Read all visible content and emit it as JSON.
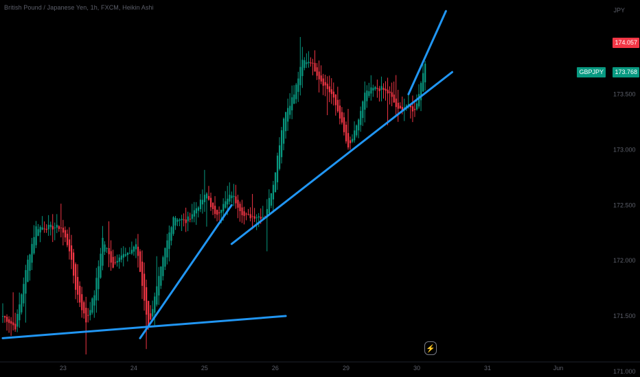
{
  "header": {
    "title": "British Pound / Japanese Yen, 1h, FXCM, Heikin Ashi",
    "currency": "JPY"
  },
  "price_badges": {
    "high_price": "174.057",
    "symbol": "GBPJPY",
    "last_price": "173.768"
  },
  "colors": {
    "up": "#089981",
    "down": "#f23645",
    "trendline": "#2196f3",
    "background": "#000000",
    "axis_text": "#5d606b"
  },
  "indicators": {
    "bolt_icon": "lightning-icon"
  },
  "chart_data": {
    "type": "candlestick",
    "style": "Heikin Ashi",
    "symbol": "GBPJPY",
    "interval": "1h",
    "source": "FXCM",
    "ylim": [
      170.95,
      174.35
    ],
    "x_ticks": [
      "23",
      "24",
      "25",
      "26",
      "29",
      "30",
      "31",
      "Jun"
    ],
    "y_ticks": [
      "171.000",
      "171.500",
      "172.000",
      "172.500",
      "173.000",
      "173.500"
    ],
    "anchors": [
      {
        "i": 0,
        "p": 171.5
      },
      {
        "i": 6,
        "p": 171.4
      },
      {
        "i": 12,
        "p": 172.0
      },
      {
        "i": 16,
        "p": 172.3
      },
      {
        "i": 22,
        "p": 172.3
      },
      {
        "i": 28,
        "p": 172.3
      },
      {
        "i": 32,
        "p": 172.1
      },
      {
        "i": 35,
        "p": 171.75
      },
      {
        "i": 40,
        "p": 171.45
      },
      {
        "i": 44,
        "p": 171.7
      },
      {
        "i": 48,
        "p": 172.2
      },
      {
        "i": 53,
        "p": 171.95
      },
      {
        "i": 56,
        "p": 172.05
      },
      {
        "i": 60,
        "p": 172.05
      },
      {
        "i": 64,
        "p": 172.15
      },
      {
        "i": 70,
        "p": 171.4
      },
      {
        "i": 74,
        "p": 171.75
      },
      {
        "i": 78,
        "p": 172.1
      },
      {
        "i": 82,
        "p": 172.4
      },
      {
        "i": 88,
        "p": 172.35
      },
      {
        "i": 94,
        "p": 172.5
      },
      {
        "i": 98,
        "p": 172.6
      },
      {
        "i": 102,
        "p": 172.4
      },
      {
        "i": 106,
        "p": 172.5
      },
      {
        "i": 110,
        "p": 172.6
      },
      {
        "i": 116,
        "p": 172.4
      },
      {
        "i": 122,
        "p": 172.4
      },
      {
        "i": 126,
        "p": 172.4
      },
      {
        "i": 130,
        "p": 172.7
      },
      {
        "i": 135,
        "p": 173.3
      },
      {
        "i": 140,
        "p": 173.5
      },
      {
        "i": 144,
        "p": 173.8
      },
      {
        "i": 148,
        "p": 173.8
      },
      {
        "i": 152,
        "p": 173.65
      },
      {
        "i": 158,
        "p": 173.5
      },
      {
        "i": 162,
        "p": 173.3
      },
      {
        "i": 166,
        "p": 173.0
      },
      {
        "i": 170,
        "p": 173.2
      },
      {
        "i": 174,
        "p": 173.5
      },
      {
        "i": 178,
        "p": 173.55
      },
      {
        "i": 182,
        "p": 173.55
      },
      {
        "i": 186,
        "p": 173.5
      },
      {
        "i": 190,
        "p": 173.35
      },
      {
        "i": 194,
        "p": 173.4
      },
      {
        "i": 198,
        "p": 173.35
      },
      {
        "i": 201,
        "p": 173.6
      },
      {
        "i": 203,
        "p": 173.8
      }
    ],
    "trendlines": [
      {
        "from": {
          "i": 0,
          "p": 171.3
        },
        "to": {
          "i": 136,
          "p": 171.5
        }
      },
      {
        "from": {
          "i": 66,
          "p": 171.3
        },
        "to": {
          "i": 110,
          "p": 172.5
        }
      },
      {
        "from": {
          "i": 110,
          "p": 172.15
        },
        "to": {
          "i": 216,
          "p": 173.7
        }
      },
      {
        "from": {
          "i": 195,
          "p": 173.5
        },
        "to": {
          "i": 213,
          "p": 174.25
        }
      }
    ]
  }
}
